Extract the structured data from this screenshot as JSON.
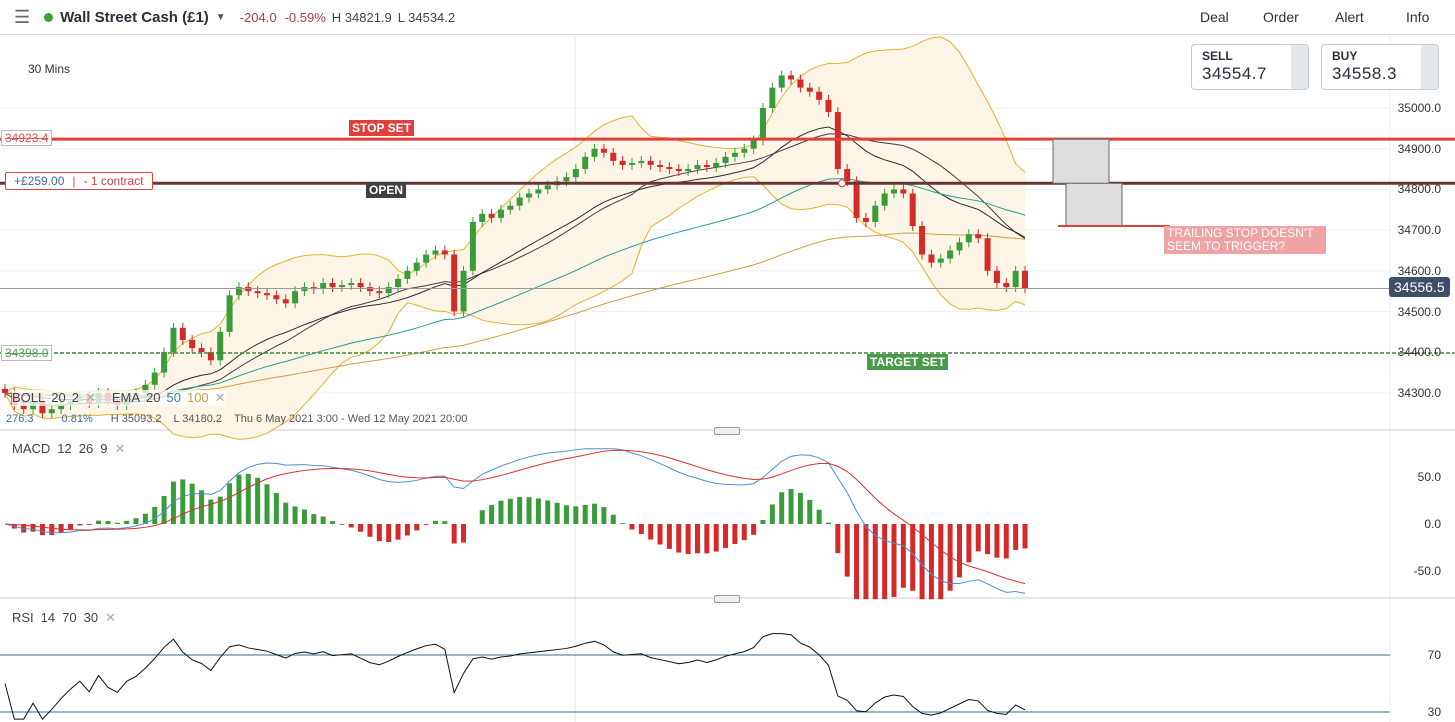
{
  "header": {
    "instrument": "Wall Street Cash (£1)",
    "change": "-204.0",
    "change_pct": "-0.59%",
    "high": "H 34821.9",
    "low": "L 34534.2",
    "nav": [
      "Deal",
      "Order",
      "Alert",
      "Info"
    ]
  },
  "quotes": {
    "sell_label": "SELL",
    "sell": "34554.7",
    "buy_label": "BUY",
    "buy": "34558.3"
  },
  "chart": {
    "timeframe": "30 Mins",
    "stop_price": "34923.4",
    "stop_label": "STOP SET",
    "open_pnl": "+£259.00",
    "open_size": "- 1 contract",
    "open_label": "OPEN",
    "target_price": "34398.0",
    "target_label": "TARGET SET",
    "annotation": "TRAILING STOP DOESN'T SEEM TO TRIGGER?",
    "current_price": "34556.5",
    "y_ticks": [
      "35000.0",
      "34900.0",
      "34800.0",
      "34700.0",
      "34600.0",
      "34500.0",
      "34400.0",
      "34300.0"
    ],
    "legend": {
      "boll": "BOLL",
      "boll_p1": "20",
      "boll_p2": "2",
      "ema": "EMA",
      "ema_p1": "20",
      "ema_p2": "50",
      "ema_p3": "100",
      "range_pts": "276.3",
      "range_pct": "0.81%",
      "range_high": "H 35093.2",
      "range_low": "L 34180.2",
      "date_range": "Thu 6 May 2021 3:00 - Wed 12 May 2021 20:00"
    }
  },
  "macd": {
    "label": "MACD",
    "p1": "12",
    "p2": "26",
    "p3": "9",
    "ticks": [
      "50.0",
      "0.0",
      "-50.0"
    ]
  },
  "rsi": {
    "label": "RSI",
    "p1": "14",
    "p2": "70",
    "p3": "30",
    "ticks": [
      "70",
      "30"
    ]
  },
  "colors": {
    "up": "#3a9b3a",
    "down": "#d42a2a",
    "stop": "#e0403c",
    "open": "#6b3434",
    "target": "#3b8a3b"
  },
  "chart_data": {
    "type": "candlestick",
    "y_range": [
      34180,
      35160
    ],
    "stop": 34923.4,
    "open": 34815,
    "target": 34398.0,
    "closes": [
      34300,
      34270,
      34260,
      34280,
      34250,
      34260,
      34270,
      34280,
      34290,
      34275,
      34300,
      34280,
      34270,
      34290,
      34300,
      34320,
      34350,
      34400,
      34460,
      34430,
      34410,
      34400,
      34380,
      34450,
      34540,
      34560,
      34550,
      34545,
      34540,
      34530,
      34520,
      34550,
      34560,
      34555,
      34570,
      34560,
      34565,
      34570,
      34560,
      34550,
      34545,
      34560,
      34580,
      34600,
      34620,
      34640,
      34650,
      34640,
      34500,
      34600,
      34720,
      34740,
      34730,
      34750,
      34760,
      34780,
      34790,
      34800,
      34810,
      34820,
      34830,
      34850,
      34880,
      34900,
      34890,
      34870,
      34860,
      34865,
      34870,
      34860,
      34855,
      34850,
      34845,
      34850,
      34860,
      34855,
      34865,
      34880,
      34890,
      34900,
      34920,
      35000,
      35050,
      35080,
      35070,
      35050,
      35040,
      35020,
      34990,
      34850,
      34820,
      34730,
      34720,
      34760,
      34790,
      34800,
      34790,
      34710,
      34640,
      34620,
      34630,
      34650,
      34670,
      34690,
      34680,
      34600,
      34570,
      34560,
      34600,
      34556.5
    ]
  }
}
